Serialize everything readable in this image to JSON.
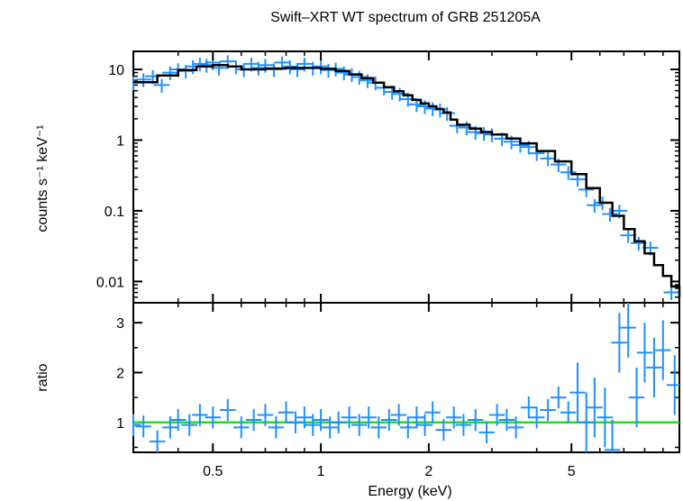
{
  "chart_data": {
    "type": "scatter",
    "title": "Swift–XRT WT spectrum of GRB 251205A",
    "xlabel": "Energy (keV)",
    "x_scale": "log",
    "xlim": [
      0.3,
      10
    ],
    "x_ticks": [
      {
        "value": 0.5,
        "label": "0.5"
      },
      {
        "value": 1,
        "label": "1"
      },
      {
        "value": 2,
        "label": "2"
      },
      {
        "value": 5,
        "label": "5"
      }
    ],
    "panels": [
      {
        "name": "spectrum",
        "ylabel": "counts s⁻¹ keV⁻¹",
        "y_scale": "log",
        "ylim": [
          0.005,
          18
        ],
        "y_ticks": [
          {
            "value": 10,
            "label": "10"
          },
          {
            "value": 1,
            "label": "1"
          },
          {
            "value": 0.1,
            "label": "0.1"
          },
          {
            "value": 0.01,
            "label": "0.01"
          }
        ],
        "data_color": "#1e90ff",
        "model_color": "#000000",
        "data": [
          {
            "x": 0.3,
            "y": 6.5
          },
          {
            "x": 0.32,
            "y": 7.2
          },
          {
            "x": 0.34,
            "y": 8.0
          },
          {
            "x": 0.36,
            "y": 6.0
          },
          {
            "x": 0.38,
            "y": 9.0
          },
          {
            "x": 0.4,
            "y": 10.0
          },
          {
            "x": 0.42,
            "y": 9.5
          },
          {
            "x": 0.44,
            "y": 11.0
          },
          {
            "x": 0.46,
            "y": 12.0
          },
          {
            "x": 0.48,
            "y": 11.5
          },
          {
            "x": 0.5,
            "y": 12.5
          },
          {
            "x": 0.52,
            "y": 10.5
          },
          {
            "x": 0.55,
            "y": 13.0
          },
          {
            "x": 0.58,
            "y": 11.0
          },
          {
            "x": 0.61,
            "y": 10.0
          },
          {
            "x": 0.64,
            "y": 12.0
          },
          {
            "x": 0.67,
            "y": 10.5
          },
          {
            "x": 0.7,
            "y": 11.5
          },
          {
            "x": 0.74,
            "y": 10.0
          },
          {
            "x": 0.78,
            "y": 12.5
          },
          {
            "x": 0.82,
            "y": 11.0
          },
          {
            "x": 0.86,
            "y": 10.0
          },
          {
            "x": 0.9,
            "y": 12.0
          },
          {
            "x": 0.95,
            "y": 10.5
          },
          {
            "x": 1.0,
            "y": 11.0
          },
          {
            "x": 1.05,
            "y": 9.8
          },
          {
            "x": 1.1,
            "y": 10.2
          },
          {
            "x": 1.16,
            "y": 9.0
          },
          {
            "x": 1.22,
            "y": 8.5
          },
          {
            "x": 1.28,
            "y": 7.8
          },
          {
            "x": 1.35,
            "y": 7.0
          },
          {
            "x": 1.42,
            "y": 6.5
          },
          {
            "x": 1.5,
            "y": 5.5
          },
          {
            "x": 1.58,
            "y": 4.8
          },
          {
            "x": 1.66,
            "y": 4.5
          },
          {
            "x": 1.75,
            "y": 3.8
          },
          {
            "x": 1.85,
            "y": 3.2
          },
          {
            "x": 1.95,
            "y": 3.0
          },
          {
            "x": 2.05,
            "y": 2.8
          },
          {
            "x": 2.15,
            "y": 2.7
          },
          {
            "x": 2.25,
            "y": 2.4
          },
          {
            "x": 2.4,
            "y": 1.6
          },
          {
            "x": 2.55,
            "y": 1.5
          },
          {
            "x": 2.7,
            "y": 1.3
          },
          {
            "x": 2.85,
            "y": 1.25
          },
          {
            "x": 3.0,
            "y": 1.2
          },
          {
            "x": 3.2,
            "y": 1.05
          },
          {
            "x": 3.4,
            "y": 0.95
          },
          {
            "x": 3.6,
            "y": 0.85
          },
          {
            "x": 3.8,
            "y": 0.8
          },
          {
            "x": 4.0,
            "y": 0.65
          },
          {
            "x": 4.3,
            "y": 0.55
          },
          {
            "x": 4.6,
            "y": 0.45
          },
          {
            "x": 4.9,
            "y": 0.35
          },
          {
            "x": 5.2,
            "y": 0.28
          },
          {
            "x": 5.5,
            "y": 0.2
          },
          {
            "x": 5.8,
            "y": 0.12
          },
          {
            "x": 6.1,
            "y": 0.13
          },
          {
            "x": 6.4,
            "y": 0.09
          },
          {
            "x": 6.8,
            "y": 0.1
          },
          {
            "x": 7.2,
            "y": 0.045
          },
          {
            "x": 7.7,
            "y": 0.035
          },
          {
            "x": 8.3,
            "y": 0.03
          },
          {
            "x": 9.5,
            "y": 0.007
          }
        ],
        "model": [
          {
            "x": 0.3,
            "y": 6.6
          },
          {
            "x": 0.35,
            "y": 8.2
          },
          {
            "x": 0.4,
            "y": 9.8
          },
          {
            "x": 0.45,
            "y": 11.0
          },
          {
            "x": 0.5,
            "y": 11.5
          },
          {
            "x": 0.55,
            "y": 11.0
          },
          {
            "x": 0.6,
            "y": 10.0
          },
          {
            "x": 0.65,
            "y": 10.0
          },
          {
            "x": 0.7,
            "y": 10.3
          },
          {
            "x": 0.8,
            "y": 10.5
          },
          {
            "x": 0.9,
            "y": 10.5
          },
          {
            "x": 1.0,
            "y": 10.2
          },
          {
            "x": 1.1,
            "y": 9.5
          },
          {
            "x": 1.2,
            "y": 8.5
          },
          {
            "x": 1.3,
            "y": 7.5
          },
          {
            "x": 1.4,
            "y": 6.5
          },
          {
            "x": 1.5,
            "y": 5.6
          },
          {
            "x": 1.6,
            "y": 4.9
          },
          {
            "x": 1.7,
            "y": 4.3
          },
          {
            "x": 1.8,
            "y": 3.7
          },
          {
            "x": 1.9,
            "y": 3.3
          },
          {
            "x": 2.0,
            "y": 3.0
          },
          {
            "x": 2.1,
            "y": 2.75
          },
          {
            "x": 2.2,
            "y": 2.45
          },
          {
            "x": 2.3,
            "y": 1.95
          },
          {
            "x": 2.4,
            "y": 1.65
          },
          {
            "x": 2.6,
            "y": 1.45
          },
          {
            "x": 2.8,
            "y": 1.3
          },
          {
            "x": 3.0,
            "y": 1.2
          },
          {
            "x": 3.3,
            "y": 1.05
          },
          {
            "x": 3.6,
            "y": 0.9
          },
          {
            "x": 4.0,
            "y": 0.7
          },
          {
            "x": 4.5,
            "y": 0.5
          },
          {
            "x": 5.0,
            "y": 0.33
          },
          {
            "x": 5.5,
            "y": 0.21
          },
          {
            "x": 6.0,
            "y": 0.13
          },
          {
            "x": 6.5,
            "y": 0.085
          },
          {
            "x": 7.0,
            "y": 0.055
          },
          {
            "x": 7.5,
            "y": 0.037
          },
          {
            "x": 8.0,
            "y": 0.025
          },
          {
            "x": 8.5,
            "y": 0.017
          },
          {
            "x": 9.0,
            "y": 0.012
          },
          {
            "x": 9.5,
            "y": 0.0085
          },
          {
            "x": 10.0,
            "y": 0.006
          }
        ]
      },
      {
        "name": "ratio",
        "ylabel": "ratio",
        "y_scale": "linear",
        "ylim": [
          0.4,
          3.4
        ],
        "y_ticks": [
          {
            "value": 1,
            "label": "1"
          },
          {
            "value": 2,
            "label": "2"
          },
          {
            "value": 3,
            "label": "3"
          }
        ],
        "data_color": "#1e90ff",
        "reference_line": {
          "y": 1.0,
          "color": "#22dd22"
        },
        "data": [
          {
            "x": 0.3,
            "y": 0.95
          },
          {
            "x": 0.32,
            "y": 0.92
          },
          {
            "x": 0.35,
            "y": 0.62
          },
          {
            "x": 0.38,
            "y": 0.9
          },
          {
            "x": 0.4,
            "y": 1.05
          },
          {
            "x": 0.43,
            "y": 0.95
          },
          {
            "x": 0.46,
            "y": 1.15
          },
          {
            "x": 0.5,
            "y": 1.1
          },
          {
            "x": 0.55,
            "y": 1.25
          },
          {
            "x": 0.6,
            "y": 0.9
          },
          {
            "x": 0.65,
            "y": 1.05
          },
          {
            "x": 0.7,
            "y": 1.15
          },
          {
            "x": 0.75,
            "y": 0.9
          },
          {
            "x": 0.8,
            "y": 1.2
          },
          {
            "x": 0.85,
            "y": 1.0
          },
          {
            "x": 0.9,
            "y": 1.1
          },
          {
            "x": 0.95,
            "y": 0.95
          },
          {
            "x": 1.0,
            "y": 1.05
          },
          {
            "x": 1.06,
            "y": 0.9
          },
          {
            "x": 1.12,
            "y": 1.0
          },
          {
            "x": 1.2,
            "y": 1.1
          },
          {
            "x": 1.28,
            "y": 0.95
          },
          {
            "x": 1.36,
            "y": 1.1
          },
          {
            "x": 1.45,
            "y": 0.9
          },
          {
            "x": 1.55,
            "y": 1.05
          },
          {
            "x": 1.65,
            "y": 1.15
          },
          {
            "x": 1.75,
            "y": 0.9
          },
          {
            "x": 1.85,
            "y": 1.1
          },
          {
            "x": 1.95,
            "y": 0.95
          },
          {
            "x": 2.05,
            "y": 1.2
          },
          {
            "x": 2.2,
            "y": 0.85
          },
          {
            "x": 2.35,
            "y": 1.1
          },
          {
            "x": 2.5,
            "y": 0.95
          },
          {
            "x": 2.7,
            "y": 1.05
          },
          {
            "x": 2.9,
            "y": 0.8
          },
          {
            "x": 3.1,
            "y": 1.15
          },
          {
            "x": 3.3,
            "y": 1.05
          },
          {
            "x": 3.5,
            "y": 0.9
          },
          {
            "x": 3.8,
            "y": 1.3
          },
          {
            "x": 4.0,
            "y": 1.1
          },
          {
            "x": 4.3,
            "y": 1.25
          },
          {
            "x": 4.6,
            "y": 1.5
          },
          {
            "x": 4.9,
            "y": 1.2
          },
          {
            "x": 5.2,
            "y": 1.6
          },
          {
            "x": 5.5,
            "y": 1.0
          },
          {
            "x": 5.8,
            "y": 1.3
          },
          {
            "x": 6.2,
            "y": 1.1
          },
          {
            "x": 6.5,
            "y": 0.45
          },
          {
            "x": 6.8,
            "y": 2.6
          },
          {
            "x": 7.2,
            "y": 2.9
          },
          {
            "x": 7.6,
            "y": 1.5
          },
          {
            "x": 8.0,
            "y": 2.4
          },
          {
            "x": 8.5,
            "y": 2.1
          },
          {
            "x": 9.0,
            "y": 2.45
          },
          {
            "x": 9.7,
            "y": 1.75
          }
        ]
      }
    ],
    "grid": false,
    "legend": "none"
  }
}
